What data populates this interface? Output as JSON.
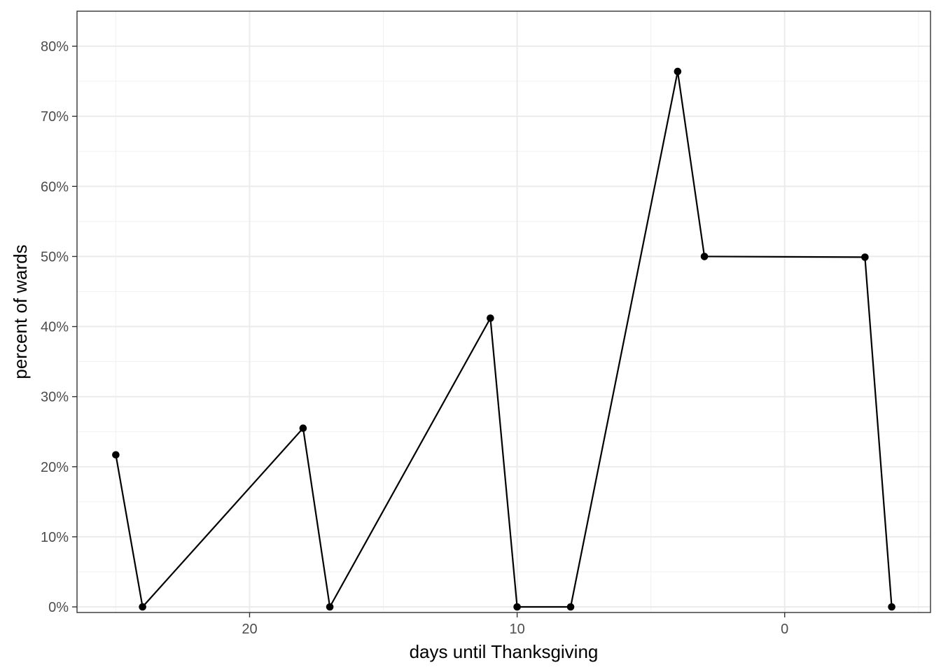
{
  "chart_data": {
    "type": "line",
    "title": "",
    "xlabel": "days until Thanksgiving",
    "ylabel": "percent of wards",
    "x_reversed": true,
    "xlim": [
      26.45,
      -5.45
    ],
    "ylim": [
      -0.8,
      85
    ],
    "x_major_ticks": [
      20,
      10,
      0
    ],
    "x_tick_labels": [
      "20",
      "10",
      "0"
    ],
    "y_major_ticks": [
      0,
      10,
      20,
      30,
      40,
      50,
      60,
      70,
      80
    ],
    "y_tick_labels": [
      "0%",
      "10%",
      "20%",
      "30%",
      "40%",
      "50%",
      "60%",
      "70%",
      "80%"
    ],
    "grid": true,
    "legend": "none",
    "colors": {
      "line": "#000000",
      "points": "#000000",
      "grid_major": "#ebebeb",
      "grid_minor": "#f2f2f2",
      "panel_border": "#333333",
      "tick_text": "#4d4d4d"
    },
    "series": [
      {
        "x": [
          25,
          24,
          18,
          17,
          11,
          10,
          8,
          4,
          3,
          -3,
          -4
        ],
        "y": [
          21.7,
          0,
          25.5,
          0,
          41.2,
          0,
          0,
          76.4,
          50,
          49.9,
          0
        ]
      }
    ]
  }
}
